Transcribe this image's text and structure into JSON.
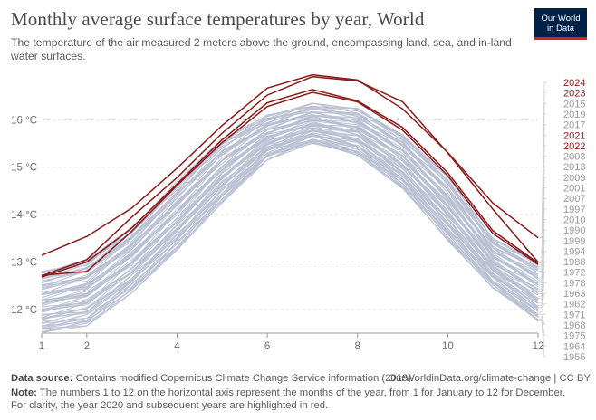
{
  "header": {
    "title": "Monthly average surface temperatures by year, World",
    "subtitle": "The temperature of the air measured 2 meters above the ground, encompassing land, sea, and in-land water surfaces."
  },
  "logo": {
    "line1": "Our World",
    "line2": "in Data"
  },
  "footer": {
    "source_label": "Data source:",
    "source_text": "Contains modified Copernicus Climate Change Service information (2019)",
    "credit": "OurWorldinData.org/climate-change | CC BY",
    "note_label": "Note:",
    "note_text": "The numbers 1 to 12 on the horizontal axis represent the months of the year, from 1 for January to 12 for December. For clarity, the year 2020 and subsequent years are highlighted in red."
  },
  "colors": {
    "highlight": "#8b1a1a",
    "background_series": "#b8bfd1",
    "label_grey": "#9a9a9a",
    "grid": "#dddddd"
  },
  "chart_data": {
    "type": "line",
    "title": "Monthly average surface temperatures by year, World",
    "xlabel": "",
    "ylabel": "",
    "x": [
      1,
      2,
      3,
      4,
      5,
      6,
      7,
      8,
      9,
      10,
      11,
      12
    ],
    "x_ticks": [
      1,
      2,
      4,
      6,
      8,
      10,
      12
    ],
    "y_ticks": [
      12,
      13,
      14,
      15,
      16
    ],
    "y_tick_labels": [
      "12 °C",
      "13 °C",
      "14 °C",
      "15 °C",
      "16 °C"
    ],
    "xlim": [
      1,
      12
    ],
    "ylim": [
      11.5,
      17.0
    ],
    "grid": "horizontal dashed",
    "legend": "right end labels",
    "highlighted_series": [
      {
        "name": "2024",
        "values": [
          13.14,
          13.54,
          14.14,
          14.98,
          15.88,
          16.67,
          16.95,
          16.84,
          16.23,
          15.31,
          14.24,
          13.51
        ]
      },
      {
        "name": "2023",
        "values": [
          12.71,
          13.05,
          13.95,
          14.78,
          15.72,
          16.52,
          16.91,
          16.82,
          16.38,
          15.3,
          14.11,
          13.0
        ]
      },
      {
        "name": "2021",
        "values": [
          12.72,
          12.8,
          13.65,
          14.62,
          15.52,
          16.28,
          16.58,
          16.38,
          15.78,
          14.82,
          13.6,
          12.95
        ]
      },
      {
        "name": "2022",
        "values": [
          12.68,
          13.0,
          13.72,
          14.65,
          15.58,
          16.36,
          16.64,
          16.4,
          15.84,
          14.88,
          13.66,
          12.98
        ]
      }
    ],
    "right_labels": [
      "2024",
      "2023",
      "2015",
      "2019",
      "2017",
      "2021",
      "2022",
      "2003",
      "2013",
      "2009",
      "2001",
      "2007",
      "1997",
      "2010",
      "1990",
      "1999",
      "1994",
      "1988",
      "1972",
      "1978",
      "1963",
      "1962",
      "1971",
      "1968",
      "1975",
      "1964",
      "1955"
    ],
    "background_series_range": {
      "min": [
        11.5,
        11.65,
        12.35,
        13.25,
        14.25,
        15.15,
        15.5,
        15.25,
        14.55,
        13.45,
        12.45,
        11.75
      ],
      "max": [
        12.8,
        13.05,
        13.75,
        14.7,
        15.6,
        16.1,
        16.35,
        16.25,
        15.7,
        14.8,
        13.5,
        13.0
      ]
    }
  }
}
